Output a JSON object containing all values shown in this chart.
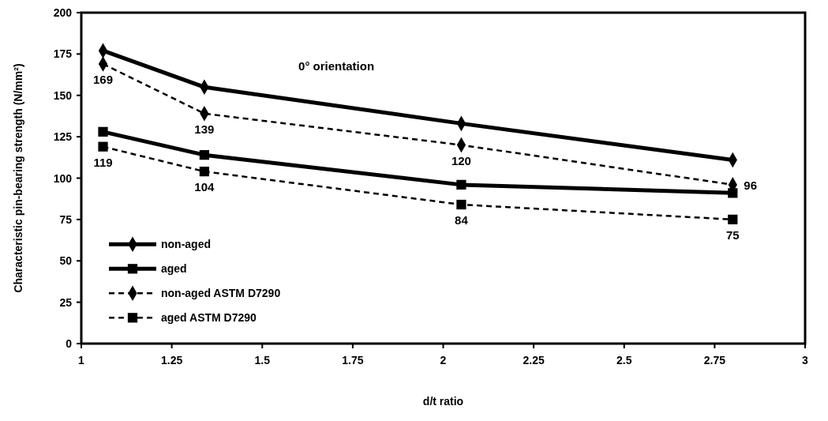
{
  "chart_data": {
    "type": "line",
    "xlabel": "d/t ratio",
    "ylabel": "Characteristic pin-bearing strength (N/mm²)",
    "x": [
      1.06,
      1.34,
      2.05,
      2.8
    ],
    "xlim": [
      1,
      3
    ],
    "xticks": [
      1,
      1.25,
      1.5,
      1.75,
      2,
      2.25,
      2.5,
      2.75,
      3
    ],
    "ylim": [
      0,
      200
    ],
    "yticks": [
      0,
      25,
      50,
      75,
      100,
      125,
      150,
      175,
      200
    ],
    "grid": false,
    "legend": "bottom left",
    "annotations": [
      "0° orientation"
    ],
    "series": [
      {
        "name": "non-aged",
        "color": "#000000",
        "marker": "diamond",
        "line_style": "solid",
        "values": [
          177,
          155,
          133,
          111
        ]
      },
      {
        "name": "aged",
        "color": "#000000",
        "marker": "square",
        "line_style": "solid",
        "values": [
          128,
          114,
          96,
          91
        ]
      },
      {
        "name": "non-aged ASTM D7290",
        "color": "#000000",
        "marker": "diamond",
        "line_style": "dashed",
        "values": [
          169,
          139,
          120,
          96
        ],
        "value_labels": [
          "169",
          "139",
          "120",
          "96"
        ]
      },
      {
        "name": "aged ASTM D7290",
        "color": "#000000",
        "marker": "square",
        "line_style": "dashed",
        "values": [
          119,
          104,
          84,
          75
        ],
        "value_labels": [
          "119",
          "104",
          "84",
          "75"
        ]
      }
    ]
  }
}
